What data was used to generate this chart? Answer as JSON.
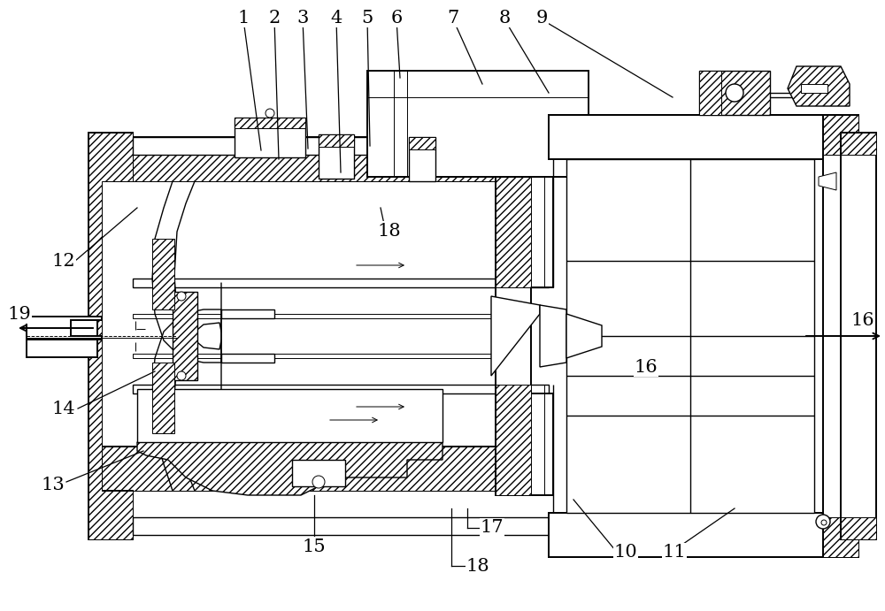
{
  "fig_w": 10.0,
  "fig_h": 6.91,
  "dpi": 100,
  "lc": "#000000",
  "bg": "#ffffff",
  "lw_main": 1.4,
  "lw_med": 1.0,
  "lw_thin": 0.7,
  "label_fs": 15
}
